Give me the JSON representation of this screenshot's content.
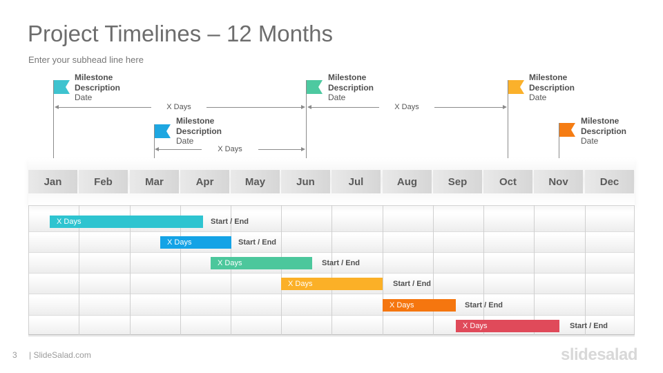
{
  "slide": {
    "title": "Project Timelines – 12 Months",
    "subhead": "Enter your subhead  line here",
    "page_number": "3",
    "site": "| SlideSalad.com",
    "logo": "slidesalad"
  },
  "months": [
    "Jan",
    "Feb",
    "Mar",
    "Apr",
    "May",
    "Jun",
    "Jul",
    "Aug",
    "Sep",
    "Oct",
    "Nov",
    "Dec"
  ],
  "milestones": [
    {
      "title": "Milestone",
      "desc": "Description",
      "date": "Date",
      "color": "#3ec3cf"
    },
    {
      "title": "Milestone",
      "desc": "Description",
      "date": "Date",
      "color": "#1ea7e1"
    },
    {
      "title": "Milestone",
      "desc": "Description",
      "date": "Date",
      "color": "#4dc9a0"
    },
    {
      "title": "Milestone",
      "desc": "Description",
      "date": "Date",
      "color": "#fbb12b"
    },
    {
      "title": "Milestone",
      "desc": "Description",
      "date": "Date",
      "color": "#f57c13"
    }
  ],
  "spans": [
    {
      "label": "X Days"
    },
    {
      "label": "X Days"
    },
    {
      "label": "X Days"
    }
  ],
  "tasks": [
    {
      "label": "X Days",
      "end_label": "Start / End",
      "color": "#2ec4d0"
    },
    {
      "label": "X Days",
      "end_label": "Start / End",
      "color": "#14a3e6"
    },
    {
      "label": "X Days",
      "end_label": "Start / End",
      "color": "#4cc79c"
    },
    {
      "label": "X Days",
      "end_label": "Start / End",
      "color": "#fbb027"
    },
    {
      "label": "X Days",
      "end_label": "Start / End",
      "color": "#f5760f"
    },
    {
      "label": "X Days",
      "end_label": "Start / End",
      "color": "#e04a5a"
    }
  ]
}
